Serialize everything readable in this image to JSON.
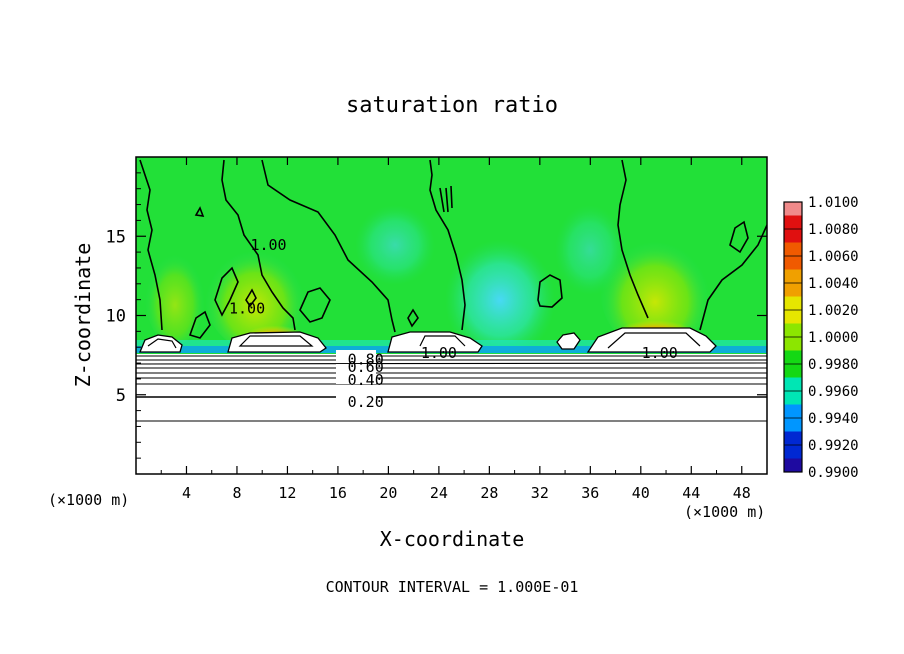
{
  "chart_data": {
    "type": "heatmap",
    "title": "saturation ratio",
    "xlabel": "X-coordinate",
    "ylabel": "Z-coordinate",
    "x_unit_left": "(×1000 m)",
    "x_unit_right": "(×1000 m)",
    "xlim": [
      0,
      50
    ],
    "ylim": [
      0,
      20
    ],
    "x_ticks": [
      "4",
      "8",
      "12",
      "16",
      "20",
      "24",
      "28",
      "32",
      "36",
      "40",
      "44",
      "48"
    ],
    "y_ticks": [
      "5",
      "10",
      "15"
    ],
    "colorbar_levels": [
      "1.0100",
      "1.0080",
      "1.0060",
      "1.0040",
      "1.0020",
      "1.0000",
      "0.9980",
      "0.9960",
      "0.9940",
      "0.9920",
      "0.9900"
    ],
    "colorbar_colors": [
      "#f08a8a",
      "#e01010",
      "#f05a00",
      "#f0a000",
      "#e6e600",
      "#8ce600",
      "#14d814",
      "#00e6b4",
      "#0096ff",
      "#0028d2",
      "#1e0aa0",
      "#6e1496"
    ],
    "contour_labels": [
      {
        "text": "1.00",
        "x": 10.5,
        "z": 14.5
      },
      {
        "text": "1.00",
        "x": 8.8,
        "z": 10.5
      },
      {
        "text": "1.00",
        "x": 24.0,
        "z": 7.7
      },
      {
        "text": "1.00",
        "x": 41.5,
        "z": 7.7
      },
      {
        "text": "0.80",
        "x": 18.2,
        "z": 7.3
      },
      {
        "text": "0.60",
        "x": 18.2,
        "z": 6.8
      },
      {
        "text": "0.40",
        "x": 18.2,
        "z": 6.0
      },
      {
        "text": "0.20",
        "x": 18.2,
        "z": 4.6
      }
    ],
    "contour_interval_label": "CONTOUR INTERVAL = 1.000E-01"
  }
}
